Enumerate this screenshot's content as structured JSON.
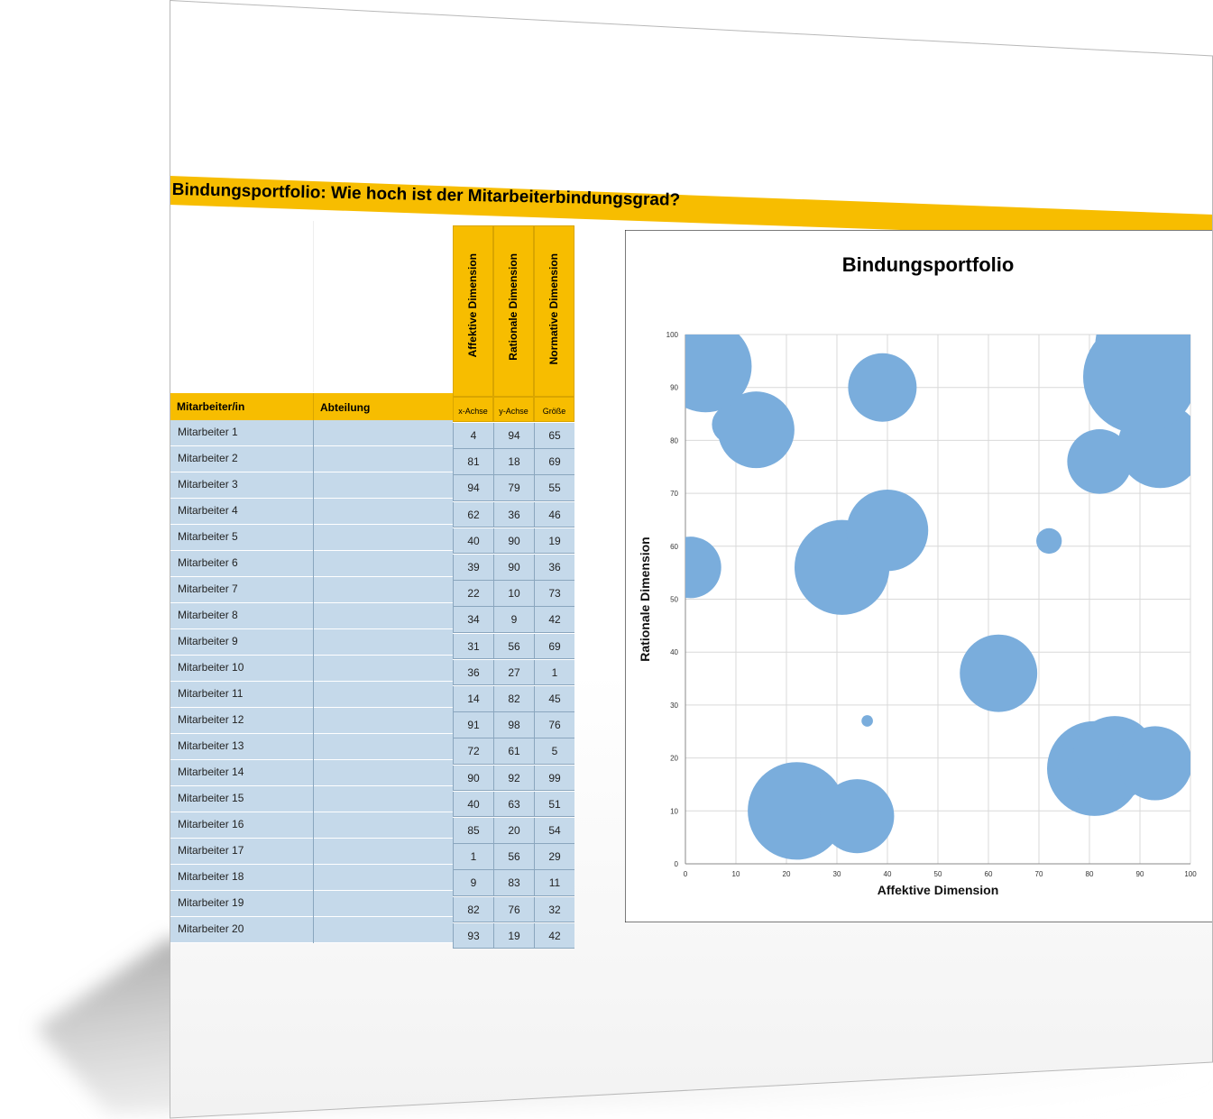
{
  "title": "Bindungsportfolio: Wie hoch ist der Mitarbeiterbindungsgrad?",
  "table": {
    "col_employee": "Mitarbeiter/in",
    "col_department": "Abteilung",
    "dim_headers": [
      "Affektive Dimension",
      "Rationale Dimension",
      "Normative Dimension"
    ],
    "sub_headers": [
      "x-Achse",
      "y-Achse",
      "Größe"
    ],
    "rows": [
      {
        "name": "Mitarbeiter 1",
        "x": "4",
        "y": "94",
        "size": "65"
      },
      {
        "name": "Mitarbeiter 2",
        "x": "81",
        "y": "18",
        "size": "69"
      },
      {
        "name": "Mitarbeiter 3",
        "x": "94",
        "y": "79",
        "size": "55"
      },
      {
        "name": "Mitarbeiter 4",
        "x": "62",
        "y": "36",
        "size": "46"
      },
      {
        "name": "Mitarbeiter 5",
        "x": "40",
        "y": "90",
        "size": "19"
      },
      {
        "name": "Mitarbeiter 6",
        "x": "39",
        "y": "90",
        "size": "36"
      },
      {
        "name": "Mitarbeiter 7",
        "x": "22",
        "y": "10",
        "size": "73"
      },
      {
        "name": "Mitarbeiter 8",
        "x": "34",
        "y": "9",
        "size": "42"
      },
      {
        "name": "Mitarbeiter 9",
        "x": "31",
        "y": "56",
        "size": "69"
      },
      {
        "name": "Mitarbeiter 10",
        "x": "36",
        "y": "27",
        "size": "1"
      },
      {
        "name": "Mitarbeiter 11",
        "x": "14",
        "y": "82",
        "size": "45"
      },
      {
        "name": "Mitarbeiter 12",
        "x": "91",
        "y": "98",
        "size": "76"
      },
      {
        "name": "Mitarbeiter 13",
        "x": "72",
        "y": "61",
        "size": "5"
      },
      {
        "name": "Mitarbeiter 14",
        "x": "90",
        "y": "92",
        "size": "99"
      },
      {
        "name": "Mitarbeiter 15",
        "x": "40",
        "y": "63",
        "size": "51"
      },
      {
        "name": "Mitarbeiter 16",
        "x": "85",
        "y": "20",
        "size": "54"
      },
      {
        "name": "Mitarbeiter 17",
        "x": "1",
        "y": "56",
        "size": "29"
      },
      {
        "name": "Mitarbeiter 18",
        "x": "9",
        "y": "83",
        "size": "11"
      },
      {
        "name": "Mitarbeiter 19",
        "x": "82",
        "y": "76",
        "size": "32"
      },
      {
        "name": "Mitarbeiter 20",
        "x": "93",
        "y": "19",
        "size": "42"
      }
    ]
  },
  "chart_data": {
    "type": "scatter",
    "title": "Bindungsportfolio",
    "xlabel": "Affektive Dimension",
    "ylabel": "Rationale Dimension",
    "xlim": [
      0,
      100
    ],
    "ylim": [
      0,
      100
    ],
    "xticks": [
      "0",
      "10",
      "20",
      "30",
      "40",
      "50",
      "60",
      "70",
      "80",
      "90",
      "100"
    ],
    "yticks": [
      "0",
      "10",
      "20",
      "30",
      "40",
      "50",
      "60",
      "70",
      "80",
      "90",
      "100"
    ],
    "grid": true,
    "bubble_color": "#7aaddc",
    "points": [
      {
        "x": 4,
        "y": 94,
        "size": 65
      },
      {
        "x": 81,
        "y": 18,
        "size": 69
      },
      {
        "x": 94,
        "y": 79,
        "size": 55
      },
      {
        "x": 62,
        "y": 36,
        "size": 46
      },
      {
        "x": 40,
        "y": 90,
        "size": 19
      },
      {
        "x": 39,
        "y": 90,
        "size": 36
      },
      {
        "x": 22,
        "y": 10,
        "size": 73
      },
      {
        "x": 34,
        "y": 9,
        "size": 42
      },
      {
        "x": 31,
        "y": 56,
        "size": 69
      },
      {
        "x": 36,
        "y": 27,
        "size": 1
      },
      {
        "x": 14,
        "y": 82,
        "size": 45
      },
      {
        "x": 91,
        "y": 98,
        "size": 76
      },
      {
        "x": 72,
        "y": 61,
        "size": 5
      },
      {
        "x": 90,
        "y": 92,
        "size": 99
      },
      {
        "x": 40,
        "y": 63,
        "size": 51
      },
      {
        "x": 85,
        "y": 20,
        "size": 54
      },
      {
        "x": 1,
        "y": 56,
        "size": 29
      },
      {
        "x": 9,
        "y": 83,
        "size": 11
      },
      {
        "x": 82,
        "y": 76,
        "size": 32
      },
      {
        "x": 93,
        "y": 19,
        "size": 42
      }
    ]
  }
}
